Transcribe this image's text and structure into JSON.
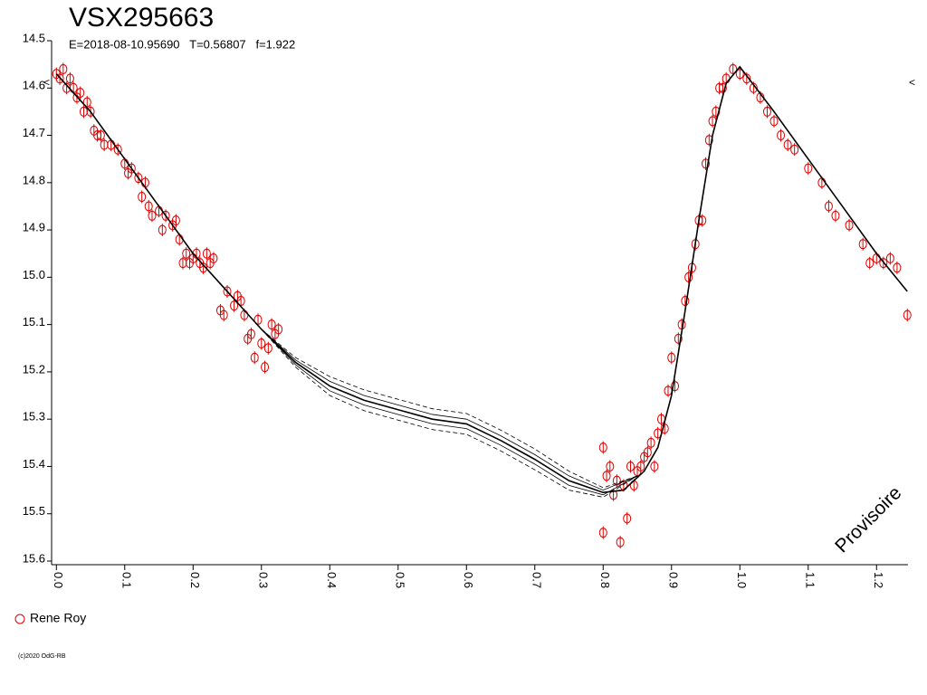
{
  "chart_data": {
    "type": "scatter",
    "title": "VSX295663",
    "subtitle": "E=2018-08-10.95690   T=0.56807   f=1.922",
    "watermark": "Provisoire",
    "annotations": [
      "<",
      "<"
    ],
    "footer": "(c)2020 OdG-RB",
    "xlim": [
      -0.007,
      1.246
    ],
    "ylim": [
      14.5,
      15.6
    ],
    "y_inverted": true,
    "xticks": [
      {
        "value": 0,
        "label": "0.0"
      },
      0.1,
      0.2,
      0.3,
      0.4,
      0.5,
      0.6,
      0.7,
      0.8,
      0.9,
      {
        "value": 1,
        "label": "1.0"
      },
      1.1,
      1.2
    ],
    "yticks": [
      14.5,
      14.6,
      14.7,
      14.8,
      14.9,
      {
        "value": 15,
        "label": "15.0"
      },
      15.1,
      15.2,
      15.3,
      15.4,
      15.5,
      15.6
    ],
    "legend": "bottom-left",
    "series": [
      {
        "name": "Rene Roy",
        "color": "#e00000",
        "mode": "markers",
        "x": [
          0.0,
          0.005,
          0.01,
          0.015,
          0.02,
          0.025,
          0.03,
          0.035,
          0.04,
          0.045,
          0.05,
          0.055,
          0.06,
          0.065,
          0.07,
          0.08,
          0.09,
          0.1,
          0.105,
          0.11,
          0.12,
          0.125,
          0.13,
          0.135,
          0.14,
          0.15,
          0.155,
          0.16,
          0.17,
          0.175,
          0.18,
          0.185,
          0.19,
          0.195,
          0.2,
          0.205,
          0.21,
          0.215,
          0.22,
          0.225,
          0.23,
          0.24,
          0.245,
          0.25,
          0.26,
          0.265,
          0.27,
          0.275,
          0.28,
          0.285,
          0.29,
          0.295,
          0.3,
          0.305,
          0.31,
          0.315,
          0.32,
          0.325,
          0.8,
          0.8,
          0.805,
          0.81,
          0.815,
          0.82,
          0.825,
          0.83,
          0.835,
          0.84,
          0.845,
          0.85,
          0.855,
          0.86,
          0.865,
          0.87,
          0.875,
          0.88,
          0.885,
          0.89,
          0.895,
          0.9,
          0.905,
          0.91,
          0.915,
          0.92,
          0.925,
          0.93,
          0.935,
          0.94,
          0.945,
          0.95,
          0.955,
          0.96,
          0.965,
          0.97,
          0.975,
          0.98,
          0.99,
          1.0,
          1.01,
          1.02,
          1.03,
          1.04,
          1.05,
          1.06,
          1.07,
          1.08,
          1.1,
          1.12,
          1.13,
          1.14,
          1.16,
          1.18,
          1.19,
          1.2,
          1.21,
          1.22,
          1.23,
          1.245
        ],
        "values": [
          14.57,
          14.58,
          14.56,
          14.6,
          14.58,
          14.6,
          14.62,
          14.61,
          14.65,
          14.63,
          14.65,
          14.69,
          14.7,
          14.7,
          14.72,
          14.72,
          14.73,
          14.76,
          14.78,
          14.77,
          14.79,
          14.83,
          14.8,
          14.85,
          14.87,
          14.86,
          14.9,
          14.87,
          14.89,
          14.88,
          14.92,
          14.97,
          14.95,
          14.97,
          14.96,
          14.95,
          14.97,
          14.98,
          14.95,
          14.97,
          14.96,
          15.07,
          15.08,
          15.03,
          15.06,
          15.04,
          15.05,
          15.08,
          15.13,
          15.12,
          15.17,
          15.09,
          15.14,
          15.19,
          15.15,
          15.1,
          15.12,
          15.11,
          15.36,
          15.54,
          15.42,
          15.4,
          15.46,
          15.43,
          15.56,
          15.44,
          15.51,
          15.4,
          15.44,
          15.41,
          15.4,
          15.38,
          15.37,
          15.35,
          15.4,
          15.33,
          15.3,
          15.32,
          15.24,
          15.17,
          15.23,
          15.13,
          15.1,
          15.05,
          15.0,
          14.98,
          14.93,
          14.88,
          14.88,
          14.76,
          14.71,
          14.67,
          14.65,
          14.6,
          14.6,
          14.58,
          14.56,
          14.57,
          14.58,
          14.6,
          14.62,
          14.65,
          14.67,
          14.7,
          14.72,
          14.73,
          14.77,
          14.8,
          14.85,
          14.87,
          14.89,
          14.93,
          14.97,
          14.96,
          14.97,
          14.96,
          14.98,
          15.08
        ]
      },
      {
        "color": "#000000",
        "mode": "line",
        "width": 1.6,
        "x": [
          0.0,
          0.05,
          0.1,
          0.15,
          0.2,
          0.25,
          0.3,
          0.35,
          0.4,
          0.45,
          0.5,
          0.55,
          0.6,
          0.65,
          0.7,
          0.75,
          0.8,
          0.83,
          0.86,
          0.88,
          0.9,
          0.92,
          0.94,
          0.96,
          0.98,
          1.0,
          1.05,
          1.1,
          1.15,
          1.2,
          1.245
        ],
        "values": [
          14.57,
          14.65,
          14.75,
          14.85,
          14.95,
          15.03,
          15.11,
          15.18,
          15.23,
          15.26,
          15.28,
          15.3,
          15.31,
          15.345,
          15.385,
          15.43,
          15.455,
          15.45,
          15.41,
          15.36,
          15.25,
          15.07,
          14.88,
          14.7,
          14.59,
          14.555,
          14.65,
          14.75,
          14.85,
          14.95,
          15.03
        ]
      },
      {
        "color": "#000000",
        "mode": "line",
        "width": 0.8,
        "x": [
          0.3,
          0.35,
          0.4,
          0.45,
          0.5,
          0.55,
          0.6,
          0.65,
          0.7,
          0.75,
          0.8,
          0.85
        ],
        "values": [
          15.11,
          15.175,
          15.22,
          15.25,
          15.27,
          15.29,
          15.3,
          15.335,
          15.375,
          15.42,
          15.45,
          15.42
        ]
      },
      {
        "color": "#000000",
        "mode": "line",
        "width": 0.8,
        "x": [
          0.3,
          0.35,
          0.4,
          0.45,
          0.5,
          0.55,
          0.6,
          0.65,
          0.7,
          0.75,
          0.8,
          0.85
        ],
        "values": [
          15.11,
          15.185,
          15.24,
          15.27,
          15.29,
          15.31,
          15.32,
          15.355,
          15.395,
          15.44,
          15.46,
          15.42
        ]
      },
      {
        "color": "#000000",
        "mode": "line",
        "width": 0.8,
        "dash": true,
        "x": [
          0.3,
          0.35,
          0.4,
          0.45,
          0.5,
          0.55,
          0.6,
          0.65,
          0.7,
          0.75,
          0.8,
          0.85
        ],
        "values": [
          15.11,
          15.17,
          15.21,
          15.238,
          15.258,
          15.278,
          15.288,
          15.323,
          15.363,
          15.41,
          15.445,
          15.42
        ]
      },
      {
        "color": "#000000",
        "mode": "line",
        "width": 0.8,
        "dash": true,
        "x": [
          0.3,
          0.35,
          0.4,
          0.45,
          0.5,
          0.55,
          0.6,
          0.65,
          0.7,
          0.75,
          0.8,
          0.85
        ],
        "values": [
          15.11,
          15.19,
          15.25,
          15.282,
          15.302,
          15.322,
          15.332,
          15.367,
          15.407,
          15.45,
          15.465,
          15.42
        ]
      }
    ]
  }
}
